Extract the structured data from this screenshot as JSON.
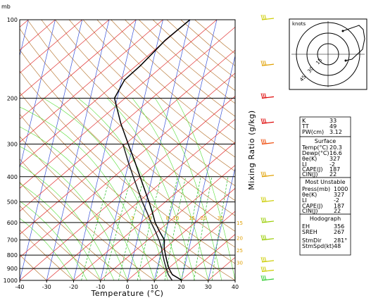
{
  "chart_data": {
    "type": "line",
    "title": "",
    "pressure_unit_label": "mb",
    "xlabel": "Temperature (°C)",
    "mixing_ratio_label": "Mixing Ratio (g/kg)",
    "pressure_ticks": [
      100,
      200,
      300,
      400,
      500,
      600,
      700,
      800,
      900,
      1000
    ],
    "temperature_ticks": [
      -40,
      -30,
      -20,
      -10,
      0,
      10,
      20,
      30,
      40
    ],
    "xlim": [
      -40,
      40
    ],
    "ylim": [
      1000,
      100
    ],
    "y_scale": "log",
    "mixing_ratio_labels": [
      "1",
      "2",
      "3",
      "5",
      "8",
      "10",
      "15",
      "20",
      "30"
    ],
    "mixing_ratio_pressure": 600,
    "wetbulb_labels": [
      "15",
      "20",
      "25",
      "30"
    ],
    "series": [
      {
        "name": "",
        "color": "#000000",
        "points": [
          [
            1000,
            20.3
          ],
          [
            950,
            15.5
          ],
          [
            900,
            13.0
          ],
          [
            850,
            11.0
          ],
          [
            800,
            9.0
          ],
          [
            750,
            7.0
          ],
          [
            700,
            5.5
          ],
          [
            650,
            2.0
          ],
          [
            600,
            -1.5
          ],
          [
            550,
            -4.5
          ],
          [
            500,
            -8.0
          ],
          [
            450,
            -12.0
          ],
          [
            400,
            -16.5
          ],
          [
            350,
            -21.5
          ],
          [
            300,
            -27.5
          ],
          [
            250,
            -34.5
          ],
          [
            200,
            -42.0
          ],
          [
            170,
            -42.0
          ],
          [
            150,
            -39.0
          ],
          [
            120,
            -35.0
          ],
          [
            100,
            -30.0
          ]
        ]
      },
      {
        "name": "",
        "color": "#222222",
        "points": [
          [
            1000,
            16.6
          ],
          [
            950,
            14.0
          ],
          [
            900,
            12.0
          ],
          [
            850,
            10.0
          ],
          [
            800,
            8.0
          ],
          [
            750,
            6.0
          ],
          [
            700,
            3.5
          ],
          [
            650,
            0.5
          ],
          [
            600,
            -3.0
          ],
          [
            550,
            -6.5
          ],
          [
            500,
            -10.5
          ],
          [
            450,
            -14.5
          ],
          [
            400,
            -19.0
          ],
          [
            350,
            -24.0
          ],
          [
            300,
            -29.5
          ]
        ]
      }
    ],
    "wind_barbs": [
      {
        "p": 100,
        "color": "#cccc00"
      },
      {
        "p": 150,
        "color": "#e0a000"
      },
      {
        "p": 200,
        "color": "#dd0000"
      },
      {
        "p": 250,
        "color": "#dd0000"
      },
      {
        "p": 300,
        "color": "#ee4400"
      },
      {
        "p": 400,
        "color": "#e0a000"
      },
      {
        "p": 500,
        "color": "#cccc00"
      },
      {
        "p": 600,
        "color": "#99cc00"
      },
      {
        "p": 700,
        "color": "#99cc00"
      },
      {
        "p": 850,
        "color": "#cccc00"
      },
      {
        "p": 925,
        "color": "#cccc00"
      },
      {
        "p": 1000,
        "color": "#33cc33"
      }
    ]
  },
  "hodograph": {
    "units_label": "knots",
    "ring_labels": [
      "15",
      "30",
      "45"
    ]
  },
  "indices_table": {
    "rows": [
      {
        "label": "K",
        "value": "33"
      },
      {
        "label": "TT",
        "value": "49"
      },
      {
        "label": "PW(cm)",
        "value": "3.12"
      }
    ]
  },
  "surface_table": {
    "title": "Surface",
    "rows": [
      {
        "label": "Temp(°C)",
        "value": "20.3"
      },
      {
        "label": "Dewp(°C)",
        "value": "16.6"
      },
      {
        "label": "θe(K)",
        "value": "327"
      },
      {
        "label": "LI",
        "value": "-2"
      },
      {
        "label": "CAPE(J)",
        "value": "187"
      },
      {
        "label": "CIN(J)",
        "value": "22"
      }
    ]
  },
  "unstable_table": {
    "title": "Most Unstable",
    "rows": [
      {
        "label": "Press(mb)",
        "value": "1000"
      },
      {
        "label": "θe(K)",
        "value": "327"
      },
      {
        "label": "LI",
        "value": "-2"
      },
      {
        "label": "CAPE(J)",
        "value": "187"
      },
      {
        "label": "CIN(J)",
        "value": "22"
      }
    ]
  },
  "hodo_table": {
    "title": "Hodograph",
    "rows": [
      {
        "label": "EH",
        "value": "356"
      },
      {
        "label": "SREH",
        "value": "267"
      },
      {
        "label": "StmDir",
        "value": "281°"
      },
      {
        "label": "StmSpd(kt)",
        "value": "48"
      }
    ]
  }
}
